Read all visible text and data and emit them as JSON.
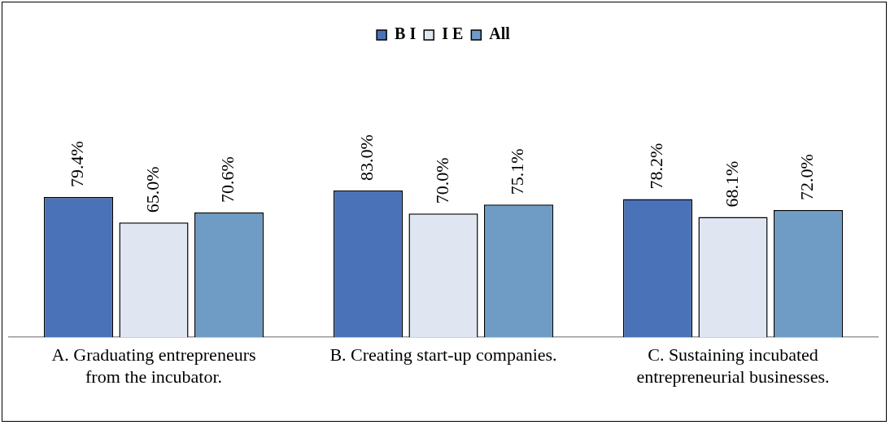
{
  "chart_data": {
    "type": "bar",
    "categories": [
      "A. Graduating entrepreneurs\nfrom the incubator.",
      "B. Creating start-up companies.",
      "C. Sustaining incubated\nentrepreneurial businesses."
    ],
    "series": [
      {
        "name": "B I",
        "color": "#4a72b8",
        "values": [
          79.4,
          83.0,
          78.2
        ],
        "value_labels": [
          "79.4%",
          "83.0%",
          "78.2%"
        ]
      },
      {
        "name": "I E",
        "color": "#dfe6f2",
        "values": [
          65.0,
          70.0,
          68.1
        ],
        "value_labels": [
          "65.0%",
          "70.0%",
          "68.1%"
        ]
      },
      {
        "name": "All",
        "color": "#6f9cc4",
        "values": [
          70.6,
          75.1,
          72.0
        ],
        "value_labels": [
          "70.6%",
          "75.1%",
          "72.0%"
        ]
      }
    ],
    "legend": "top"
  }
}
